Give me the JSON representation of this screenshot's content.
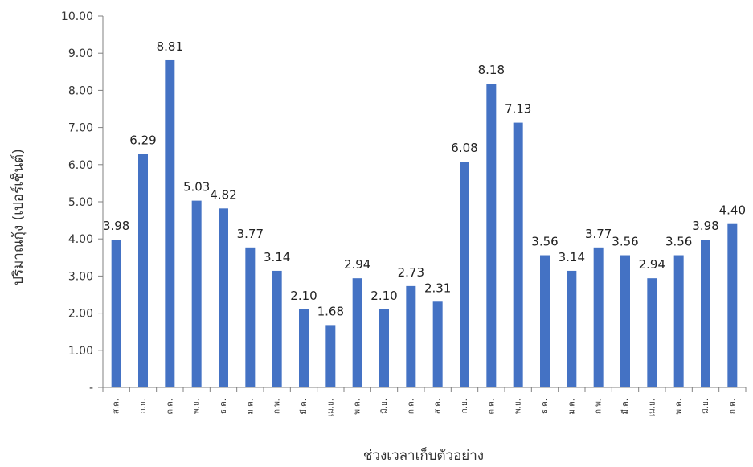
{
  "chart_data": {
    "type": "bar",
    "title": "",
    "xlabel": "ช่วงเวลาเก็บตัวอย่าง",
    "ylabel": "ปริมาณกุ้ง (เปอร์เซ็นต์)",
    "ylim": [
      0,
      10
    ],
    "y_ticks": [
      "-",
      "1.00",
      "2.00",
      "3.00",
      "4.00",
      "5.00",
      "6.00",
      "7.00",
      "8.00",
      "9.00",
      "10.00"
    ],
    "grid": false,
    "legend": "none",
    "bar_color": "#4472C4",
    "categories": [
      "ส.ค.",
      "ก.ย.",
      "ต.ค.",
      "พ.ย.",
      "ธ.ค.",
      "ม.ค.",
      "ก.พ.",
      "มี.ค.",
      "เม.ย.",
      "พ.ค.",
      "มิ.ย.",
      "ก.ค.",
      "ส.ค.",
      "ก.ย.",
      "ต.ค.",
      "พ.ย.",
      "ธ.ค.",
      "ม.ค.",
      "ก.พ.",
      "มี.ค.",
      "เม.ย.",
      "พ.ค.",
      "มิ.ย.",
      "ก.ค."
    ],
    "values": [
      3.98,
      6.29,
      8.81,
      5.03,
      4.82,
      3.77,
      3.14,
      2.1,
      1.68,
      2.94,
      2.1,
      2.73,
      2.31,
      6.08,
      8.18,
      7.13,
      3.56,
      3.14,
      3.77,
      3.56,
      2.94,
      3.56,
      3.98,
      4.4
    ],
    "value_labels": [
      "3.98",
      "6.29",
      "8.81",
      "5.03",
      "4.82",
      "3.77",
      "3.14",
      "2.10",
      "1.68",
      "2.94",
      "2.10",
      "2.73",
      "2.31",
      "6.08",
      "8.18",
      "7.13",
      "3.56",
      "3.14",
      "3.77",
      "3.56",
      "2.94",
      "3.56",
      "3.98",
      "4.40"
    ]
  }
}
